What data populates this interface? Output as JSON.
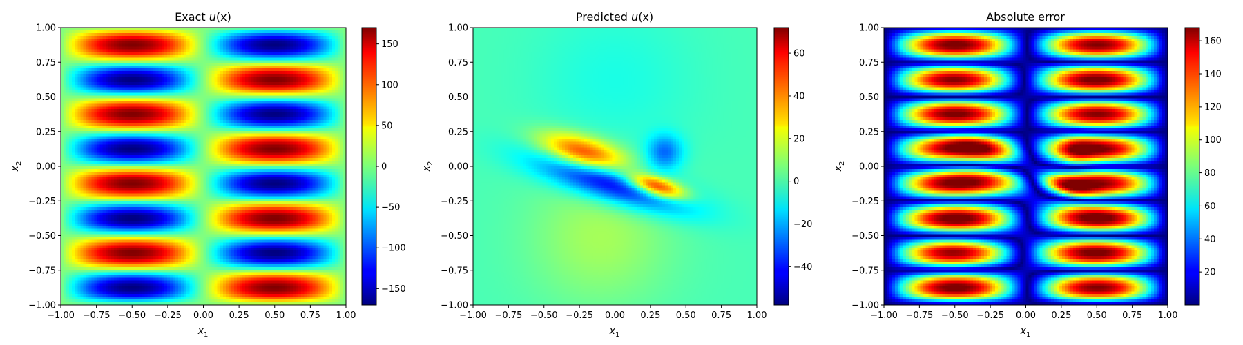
{
  "chart_data": [
    {
      "type": "heatmap",
      "title_main": "Exact ",
      "title_var": "u",
      "title_args": "(x)",
      "xlabel_base": "x",
      "xlabel_sub": "1",
      "ylabel_base": "x",
      "ylabel_sub": "2",
      "xlim": [
        -1,
        1
      ],
      "ylim": [
        -1,
        1
      ],
      "xticks": [
        "−1.00",
        "−0.75",
        "−0.50",
        "−0.25",
        "0.00",
        "0.25",
        "0.50",
        "0.75",
        "1.00"
      ],
      "yticks": [
        "−1.00",
        "−0.75",
        "−0.50",
        "−0.25",
        "0.00",
        "0.25",
        "0.50",
        "0.75",
        "1.00"
      ],
      "colorbar": {
        "min": -170,
        "max": 170,
        "ticks": [
          "−150",
          "−100",
          "−50",
          "0",
          "50",
          "100",
          "150"
        ]
      },
      "colormap": "jet",
      "field": "170 * sin(pi*x1) * sin(4*pi*x2)",
      "amplitude": 170
    },
    {
      "type": "heatmap",
      "title_main": "Predicted ",
      "title_var": "u",
      "title_args": "(x)",
      "xlabel_base": "x",
      "xlabel_sub": "1",
      "ylabel_base": "x",
      "ylabel_sub": "2",
      "xlim": [
        -1,
        1
      ],
      "ylim": [
        -1,
        1
      ],
      "xticks": [
        "−1.00",
        "−0.75",
        "−0.50",
        "−0.25",
        "0.00",
        "0.25",
        "0.50",
        "0.75",
        "1.00"
      ],
      "yticks": [
        "−1.00",
        "−0.75",
        "−0.50",
        "−0.25",
        "0.00",
        "0.25",
        "0.50",
        "0.75",
        "1.00"
      ],
      "colorbar": {
        "min": -58,
        "max": 72,
        "ticks": [
          "−40",
          "−20",
          "0",
          "20",
          "40",
          "60"
        ]
      },
      "colormap": "jet",
      "field": "diagonal band of alternating blobs near x2 = -0.3*x1 - 0.05"
    },
    {
      "type": "heatmap",
      "title_main": "Absolute error",
      "title_var": "",
      "title_args": "",
      "xlabel_base": "x",
      "xlabel_sub": "1",
      "ylabel_base": "x",
      "ylabel_sub": "2",
      "xlim": [
        -1,
        1
      ],
      "ylim": [
        -1,
        1
      ],
      "xticks": [
        "−1.00",
        "−0.75",
        "−0.50",
        "−0.25",
        "0.00",
        "0.25",
        "0.50",
        "0.75",
        "1.00"
      ],
      "yticks": [
        "−1.00",
        "−0.75",
        "−0.50",
        "−0.25",
        "0.00",
        "0.25",
        "0.50",
        "0.75",
        "1.00"
      ],
      "colorbar": {
        "min": 0,
        "max": 168,
        "ticks": [
          "20",
          "40",
          "60",
          "80",
          "100",
          "120",
          "140",
          "160"
        ]
      },
      "colormap": "jet",
      "field": "|exact - predicted|"
    }
  ]
}
